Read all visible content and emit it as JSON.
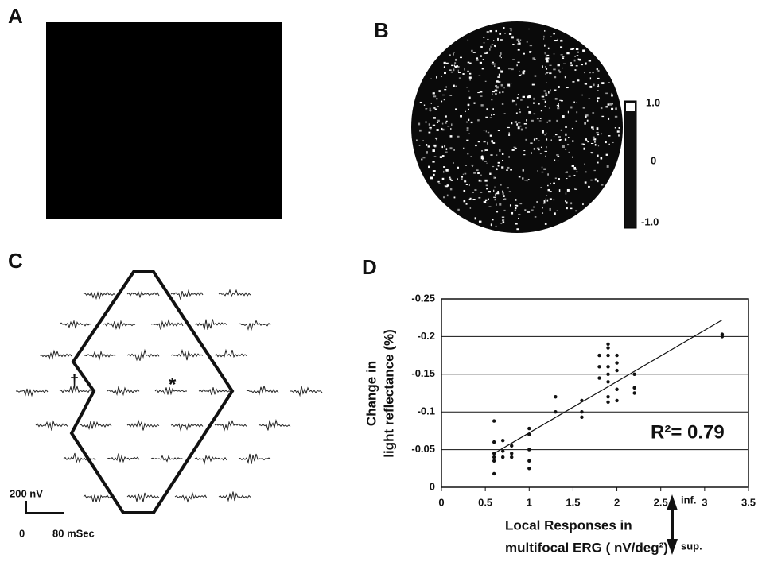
{
  "figure": {
    "panel_a": {
      "label": "A"
    },
    "panel_b": {
      "label": "B",
      "colorbar_labels": [
        "1.0",
        "0",
        "-1.0"
      ]
    },
    "panel_c": {
      "label": "C",
      "marker_dagger": "†",
      "marker_star": "*",
      "scale_amplitude": "200 nV",
      "scale_time_start": "0",
      "scale_time_end": "80 mSec",
      "direction_up": "inf.",
      "direction_down": "sup."
    },
    "panel_d": {
      "label": "D"
    }
  },
  "chart_data": {
    "type": "scatter",
    "x_label": [
      "Local Responses in",
      "multifocal ERG  ( nV/deg²)"
    ],
    "y_label": [
      "Change in",
      "light reflectance (%)"
    ],
    "annotation": "R²= 0.79",
    "color": "#111111",
    "x": [
      0.6,
      0.6,
      0.6,
      0.6,
      0.6,
      0.6,
      0.7,
      0.7,
      0.7,
      0.8,
      0.8,
      0.8,
      1.0,
      1.0,
      1.0,
      1.0,
      1.0,
      1.3,
      1.3,
      1.6,
      1.6,
      1.6,
      1.8,
      1.8,
      1.8,
      1.9,
      1.9,
      1.9,
      1.9,
      1.9,
      1.9,
      1.9,
      1.9,
      2.0,
      2.0,
      2.0,
      2.0,
      2.0,
      2.2,
      2.2,
      2.2,
      3.2,
      3.2
    ],
    "values": [
      -0.088,
      -0.06,
      -0.045,
      -0.04,
      -0.035,
      -0.018,
      -0.062,
      -0.048,
      -0.04,
      -0.055,
      -0.045,
      -0.04,
      -0.078,
      -0.07,
      -0.05,
      -0.035,
      -0.025,
      -0.12,
      -0.1,
      -0.115,
      -0.1,
      -0.093,
      -0.175,
      -0.16,
      -0.145,
      -0.19,
      -0.185,
      -0.175,
      -0.16,
      -0.15,
      -0.14,
      -0.12,
      -0.113,
      -0.175,
      -0.165,
      -0.155,
      -0.13,
      -0.115,
      -0.15,
      -0.132,
      -0.125,
      -0.2,
      -0.203
    ],
    "trend_line": {
      "x": [
        0.6,
        3.2
      ],
      "y": [
        -0.045,
        -0.222
      ]
    },
    "xlim": [
      0,
      3.5
    ],
    "xticks": [
      0,
      0.5,
      1,
      1.5,
      2,
      2.5,
      3,
      3.5
    ],
    "ylim": [
      0,
      -0.25
    ],
    "yticks": [
      0,
      -0.05,
      -0.1,
      -0.15,
      -0.2,
      -0.25
    ],
    "grid": true
  }
}
